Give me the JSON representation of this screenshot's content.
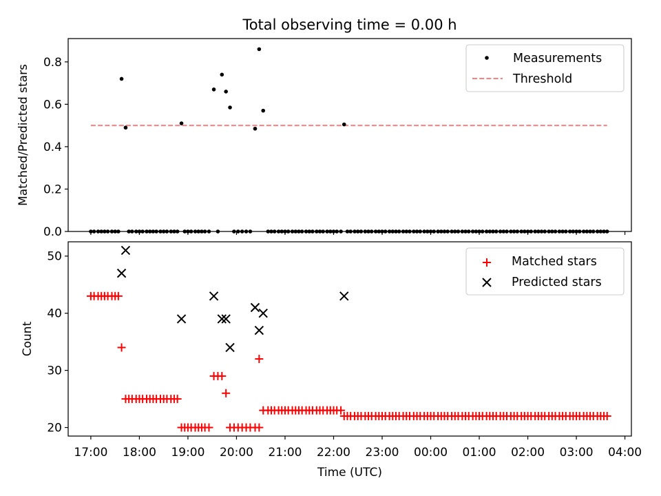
{
  "colors": {
    "measurement": "#000000",
    "threshold": "#ff7f7f",
    "matched": "#ff0000",
    "predicted": "#000000"
  },
  "chart_data": [
    {
      "type": "scatter",
      "title": "Total observing time = 0.00 h",
      "ylabel": "Matched/Predicted stars",
      "xlabel": "",
      "ylim": [
        0,
        0.91
      ],
      "yticks": [
        0.0,
        0.2,
        0.4,
        0.6,
        0.8
      ],
      "ytick_labels": [
        "0.0",
        "0.2",
        "0.4",
        "0.6",
        "0.8"
      ],
      "legend_position": "top-right",
      "legend": [
        "Measurements",
        "Threshold"
      ],
      "threshold": {
        "name": "Threshold",
        "value": 0.5,
        "x_start": "17:00",
        "x_end": "03:38"
      },
      "series": [
        {
          "name": "Measurements",
          "marker": "dot",
          "points": [
            [
              "17:00",
              0
            ],
            [
              "17:04",
              0
            ],
            [
              "17:09",
              0
            ],
            [
              "17:13",
              0
            ],
            [
              "17:17",
              0
            ],
            [
              "17:21",
              0
            ],
            [
              "17:26",
              0
            ],
            [
              "17:30",
              0
            ],
            [
              "17:34",
              0
            ],
            [
              "17:38",
              0.72
            ],
            [
              "17:43",
              0.49
            ],
            [
              "17:47",
              0
            ],
            [
              "17:51",
              0
            ],
            [
              "17:56",
              0
            ],
            [
              "18:00",
              0
            ],
            [
              "18:04",
              0
            ],
            [
              "18:09",
              0
            ],
            [
              "18:13",
              0
            ],
            [
              "18:17",
              0
            ],
            [
              "18:21",
              0
            ],
            [
              "18:26",
              0
            ],
            [
              "18:30",
              0
            ],
            [
              "18:34",
              0
            ],
            [
              "18:39",
              0
            ],
            [
              "18:43",
              0
            ],
            [
              "18:47",
              0
            ],
            [
              "18:52",
              0.51
            ],
            [
              "18:56",
              0
            ],
            [
              "19:00",
              0
            ],
            [
              "19:04",
              0
            ],
            [
              "19:09",
              0
            ],
            [
              "19:13",
              0
            ],
            [
              "19:17",
              0
            ],
            [
              "19:21",
              0
            ],
            [
              "19:26",
              0
            ],
            [
              "19:32",
              0.67
            ],
            [
              "19:37",
              0
            ],
            [
              "19:42",
              0.74
            ],
            [
              "19:47",
              0.66
            ],
            [
              "19:52",
              0.585
            ],
            [
              "19:57",
              0
            ],
            [
              "20:02",
              0
            ],
            [
              "20:07",
              0
            ],
            [
              "20:12",
              0
            ],
            [
              "20:17",
              0
            ],
            [
              "20:23",
              0.485
            ],
            [
              "20:28",
              0.86
            ],
            [
              "20:33",
              0.57
            ],
            [
              "20:39",
              0
            ],
            [
              "20:43",
              0
            ],
            [
              "20:47",
              0
            ],
            [
              "20:52",
              0
            ],
            [
              "20:56",
              0
            ],
            [
              "21:00",
              0
            ],
            [
              "21:04",
              0
            ],
            [
              "21:09",
              0
            ],
            [
              "21:13",
              0
            ],
            [
              "21:17",
              0
            ],
            [
              "21:21",
              0
            ],
            [
              "21:26",
              0
            ],
            [
              "21:30",
              0
            ],
            [
              "21:34",
              0
            ],
            [
              "21:39",
              0
            ],
            [
              "21:43",
              0
            ],
            [
              "21:47",
              0
            ],
            [
              "21:52",
              0
            ],
            [
              "21:56",
              0
            ],
            [
              "22:00",
              0
            ],
            [
              "22:04",
              0
            ],
            [
              "22:09",
              0
            ],
            [
              "22:13",
              0.505
            ],
            [
              "22:17",
              0
            ],
            [
              "22:21",
              0
            ],
            [
              "22:26",
              0
            ],
            [
              "22:30",
              0
            ],
            [
              "22:34",
              0
            ],
            [
              "22:39",
              0
            ],
            [
              "22:43",
              0
            ],
            [
              "22:47",
              0
            ],
            [
              "22:52",
              0
            ],
            [
              "22:56",
              0
            ],
            [
              "23:00",
              0
            ],
            [
              "23:04",
              0
            ],
            [
              "23:09",
              0
            ],
            [
              "23:13",
              0
            ],
            [
              "23:17",
              0
            ],
            [
              "23:21",
              0
            ],
            [
              "23:26",
              0
            ],
            [
              "23:30",
              0
            ],
            [
              "23:34",
              0
            ],
            [
              "23:39",
              0
            ],
            [
              "23:43",
              0
            ],
            [
              "23:47",
              0
            ],
            [
              "23:52",
              0
            ],
            [
              "23:56",
              0
            ],
            [
              "00:00",
              0
            ],
            [
              "00:04",
              0
            ],
            [
              "00:09",
              0
            ],
            [
              "00:13",
              0
            ],
            [
              "00:17",
              0
            ],
            [
              "00:21",
              0
            ],
            [
              "00:26",
              0
            ],
            [
              "00:30",
              0
            ],
            [
              "00:34",
              0
            ],
            [
              "00:39",
              0
            ],
            [
              "00:43",
              0
            ],
            [
              "00:47",
              0
            ],
            [
              "00:52",
              0
            ],
            [
              "00:56",
              0
            ],
            [
              "01:00",
              0
            ],
            [
              "01:04",
              0
            ],
            [
              "01:09",
              0
            ],
            [
              "01:13",
              0
            ],
            [
              "01:17",
              0
            ],
            [
              "01:21",
              0
            ],
            [
              "01:26",
              0
            ],
            [
              "01:30",
              0
            ],
            [
              "01:34",
              0
            ],
            [
              "01:39",
              0
            ],
            [
              "01:43",
              0
            ],
            [
              "01:47",
              0
            ],
            [
              "01:52",
              0
            ],
            [
              "01:56",
              0
            ],
            [
              "02:00",
              0
            ],
            [
              "02:04",
              0
            ],
            [
              "02:09",
              0
            ],
            [
              "02:13",
              0
            ],
            [
              "02:17",
              0
            ],
            [
              "02:21",
              0
            ],
            [
              "02:26",
              0
            ],
            [
              "02:30",
              0
            ],
            [
              "02:34",
              0
            ],
            [
              "02:39",
              0
            ],
            [
              "02:43",
              0
            ],
            [
              "02:47",
              0
            ],
            [
              "02:52",
              0
            ],
            [
              "02:56",
              0
            ],
            [
              "03:00",
              0
            ],
            [
              "03:04",
              0
            ],
            [
              "03:09",
              0
            ],
            [
              "03:13",
              0
            ],
            [
              "03:17",
              0
            ],
            [
              "03:21",
              0
            ],
            [
              "03:26",
              0
            ],
            [
              "03:30",
              0
            ],
            [
              "03:34",
              0
            ],
            [
              "03:38",
              0
            ]
          ]
        }
      ]
    },
    {
      "type": "scatter",
      "title": "",
      "ylabel": "Count",
      "xlabel": "Time (UTC)",
      "ylim": [
        18.5,
        52.5
      ],
      "yticks": [
        20,
        30,
        40,
        50
      ],
      "ytick_labels": [
        "20",
        "30",
        "40",
        "50"
      ],
      "xtick_labels": [
        "17:00",
        "18:00",
        "19:00",
        "20:00",
        "21:00",
        "22:00",
        "23:00",
        "00:00",
        "01:00",
        "02:00",
        "03:00",
        "04:00"
      ],
      "xlim": [
        "16:32",
        "04:08"
      ],
      "legend_position": "top-right",
      "legend": [
        "Matched stars",
        "Predicted stars"
      ],
      "matched_runs": [
        {
          "start": "17:00",
          "end": "17:34",
          "value": 43
        },
        {
          "start": "17:38",
          "end": "17:38",
          "value": 34
        },
        {
          "start": "17:43",
          "end": "18:47",
          "value": 25
        },
        {
          "start": "18:52",
          "end": "19:26",
          "value": 20
        },
        {
          "start": "19:32",
          "end": "19:42",
          "value": 29
        },
        {
          "start": "19:47",
          "end": "19:47",
          "value": 26
        },
        {
          "start": "19:52",
          "end": "20:28",
          "value": 20
        },
        {
          "start": "20:28",
          "end": "20:28",
          "value": 32
        },
        {
          "start": "20:33",
          "end": "22:09",
          "value": 23
        },
        {
          "start": "22:13",
          "end": "03:38",
          "value": 22
        }
      ],
      "series": [
        {
          "name": "Predicted stars",
          "marker": "x",
          "points": [
            [
              "17:38",
              47
            ],
            [
              "17:43",
              51
            ],
            [
              "18:52",
              39
            ],
            [
              "19:32",
              43
            ],
            [
              "19:42",
              39
            ],
            [
              "19:47",
              39
            ],
            [
              "19:52",
              34
            ],
            [
              "20:23",
              41
            ],
            [
              "20:28",
              37
            ],
            [
              "20:33",
              40
            ],
            [
              "22:13",
              43
            ]
          ]
        }
      ]
    }
  ]
}
